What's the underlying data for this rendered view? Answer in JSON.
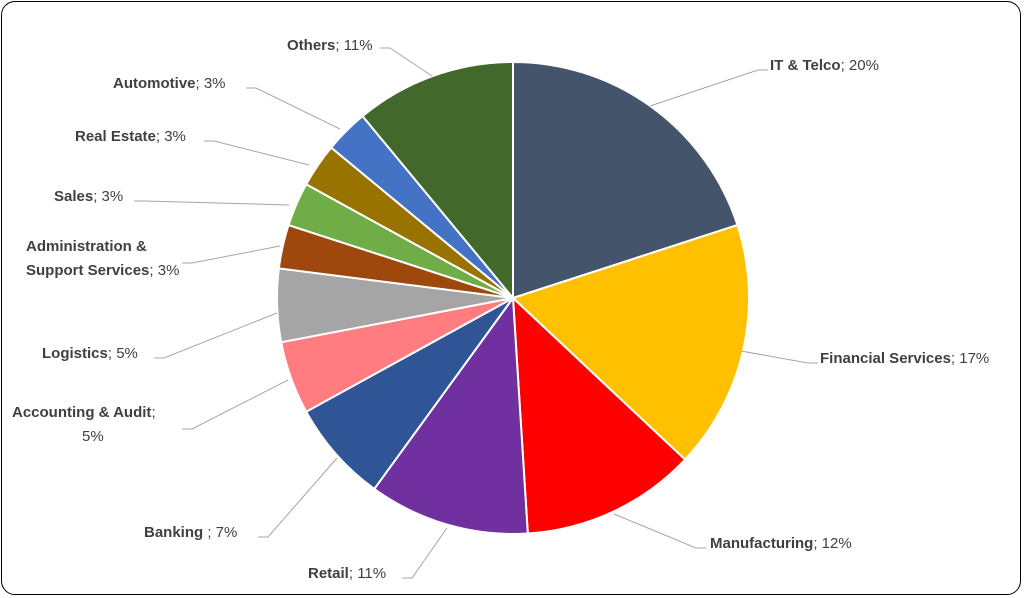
{
  "chart_data": {
    "type": "pie",
    "title": "",
    "start_angle_deg": 0,
    "direction": "clockwise",
    "slices": [
      {
        "label": "IT & Telco",
        "value": 20,
        "value_label": "20%",
        "color": "#44546a"
      },
      {
        "label": "Financial Services",
        "value": 17,
        "value_label": "17%",
        "color": "#ffc000"
      },
      {
        "label": "Manufacturing",
        "value": 12,
        "value_label": "12%",
        "color": "#ff0000"
      },
      {
        "label": "Retail",
        "value": 11,
        "value_label": "11%",
        "color": "#7030a0"
      },
      {
        "label": "Banking ",
        "value": 7,
        "value_label": "7%",
        "color": "#2f5597"
      },
      {
        "label": "Accounting & Audit",
        "value": 5,
        "value_label": "5%",
        "color": "#ff7c80"
      },
      {
        "label": "Logistics",
        "value": 5,
        "value_label": "5%",
        "color": "#a5a5a5"
      },
      {
        "label": "Administration & Support Services",
        "value": 3,
        "value_label": "3%",
        "color": "#9e480e"
      },
      {
        "label": "Sales",
        "value": 3,
        "value_label": "3%",
        "color": "#70ad47"
      },
      {
        "label": "Real Estate",
        "value": 3,
        "value_label": "3%",
        "color": "#997300"
      },
      {
        "label": "Automotive",
        "value": 3,
        "value_label": "3%",
        "color": "#4472c4"
      },
      {
        "label": "Others",
        "value": 11,
        "value_label": "11%",
        "color": "#43682b"
      }
    ]
  }
}
